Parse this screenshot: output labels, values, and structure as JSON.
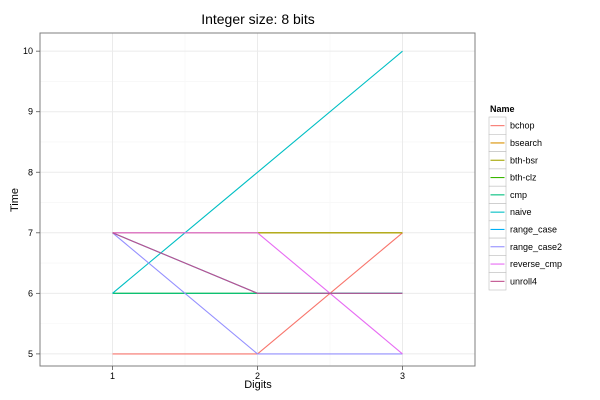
{
  "chart_data": {
    "type": "line",
    "title": "Integer size: 8 bits",
    "xlabel": "Digits",
    "ylabel": "Time",
    "xlim": [
      0.5,
      3.5
    ],
    "ylim": [
      4.8,
      10.3
    ],
    "x_ticks": [
      1,
      2,
      3
    ],
    "y_ticks": [
      5,
      6,
      7,
      8,
      9,
      10
    ],
    "grid": true,
    "legend_title": "Name",
    "legend_position": "right",
    "x": [
      1,
      2,
      3
    ],
    "series": [
      {
        "name": "bchop",
        "color": "#F8766D",
        "values": [
          5,
          5,
          7
        ]
      },
      {
        "name": "bsearch",
        "color": "#D89000",
        "values": [
          7,
          7,
          7
        ]
      },
      {
        "name": "bth-bsr",
        "color": "#A3A500",
        "values": [
          7,
          7,
          7
        ]
      },
      {
        "name": "bth-clz",
        "color": "#39B600",
        "values": [
          6,
          6,
          6
        ]
      },
      {
        "name": "cmp",
        "color": "#00BF7D",
        "values": [
          6,
          6,
          6
        ]
      },
      {
        "name": "naive",
        "color": "#00BFC4",
        "values": [
          6,
          8,
          10
        ]
      },
      {
        "name": "range_case",
        "color": "#00B0F6",
        "values": [
          7,
          6,
          6
        ]
      },
      {
        "name": "range_case2",
        "color": "#9590FF",
        "values": [
          7,
          5,
          5
        ]
      },
      {
        "name": "reverse_cmp",
        "color": "#E76BF3",
        "values": [
          7,
          7,
          5
        ]
      },
      {
        "name": "unroll4",
        "color": "#C0508C",
        "values": [
          7,
          6,
          6
        ]
      }
    ]
  }
}
